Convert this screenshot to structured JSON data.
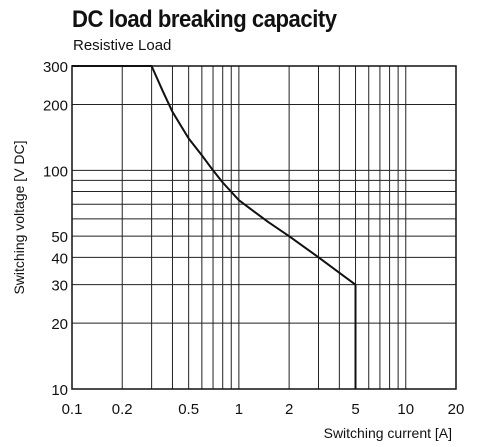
{
  "chart_data": {
    "type": "line",
    "title": "DC load breaking capacity",
    "subtitle": "Resistive Load",
    "xlabel": "Switching current [A]",
    "ylabel": "Switching voltage [V DC]",
    "x_scale": "log",
    "y_scale": "log",
    "xlim": [
      0.1,
      20
    ],
    "ylim": [
      10,
      300
    ],
    "x_ticks": [
      {
        "value": 0.1,
        "label": "0.1"
      },
      {
        "value": 0.2,
        "label": "0.2"
      },
      {
        "value": 0.5,
        "label": "0.5"
      },
      {
        "value": 1,
        "label": "1"
      },
      {
        "value": 2,
        "label": "2"
      },
      {
        "value": 5,
        "label": "5"
      },
      {
        "value": 10,
        "label": "10"
      },
      {
        "value": 20,
        "label": "20"
      }
    ],
    "y_ticks": [
      {
        "value": 10,
        "label": "10"
      },
      {
        "value": 20,
        "label": "20"
      },
      {
        "value": 30,
        "label": "30"
      },
      {
        "value": 40,
        "label": "40"
      },
      {
        "value": 50,
        "label": "50"
      },
      {
        "value": 100,
        "label": "100"
      },
      {
        "value": 200,
        "label": "200"
      },
      {
        "value": 300,
        "label": "300"
      }
    ],
    "x_gridlines": [
      0.1,
      0.2,
      0.3,
      0.4,
      0.5,
      0.6,
      0.7,
      0.8,
      0.9,
      1,
      2,
      3,
      4,
      5,
      6,
      7,
      8,
      9,
      10,
      20
    ],
    "y_gridlines": [
      10,
      20,
      30,
      40,
      50,
      60,
      70,
      80,
      90,
      100,
      200,
      300
    ],
    "grid": true,
    "series": [
      {
        "color": "#111111",
        "points": [
          {
            "x": 0.1,
            "y": 300
          },
          {
            "x": 0.3,
            "y": 300
          },
          {
            "x": 0.35,
            "y": 230
          },
          {
            "x": 0.4,
            "y": 185
          },
          {
            "x": 0.5,
            "y": 140
          },
          {
            "x": 0.6,
            "y": 117
          },
          {
            "x": 0.7,
            "y": 100
          },
          {
            "x": 0.8,
            "y": 88
          },
          {
            "x": 1,
            "y": 73
          },
          {
            "x": 1.5,
            "y": 58
          },
          {
            "x": 2,
            "y": 50
          },
          {
            "x": 3,
            "y": 40
          },
          {
            "x": 4,
            "y": 34
          },
          {
            "x": 5,
            "y": 30
          },
          {
            "x": 5,
            "y": 10
          }
        ]
      }
    ]
  }
}
